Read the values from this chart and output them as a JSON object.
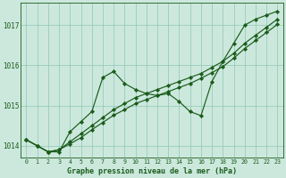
{
  "background_color": "#cce8dd",
  "grid_color": "#99ccbb",
  "line_color": "#1a5c1a",
  "marker_color": "#1a5c1a",
  "text_color": "#1a5c1a",
  "xlabel": "Graphe pression niveau de la mer (hPa)",
  "x_ticks": [
    0,
    1,
    2,
    3,
    4,
    5,
    6,
    7,
    8,
    9,
    10,
    11,
    12,
    13,
    14,
    15,
    16,
    17,
    18,
    19,
    20,
    21,
    22,
    23
  ],
  "ylim": [
    1013.7,
    1017.55
  ],
  "xlim": [
    -0.5,
    23.5
  ],
  "y_ticks": [
    1014,
    1015,
    1016,
    1017
  ],
  "series_volatile": [
    1014.15,
    1014.0,
    1013.85,
    1013.85,
    1014.35,
    1014.6,
    1014.85,
    1015.7,
    1015.85,
    1015.55,
    1015.4,
    1015.3,
    1015.25,
    1015.3,
    1015.1,
    1014.85,
    1014.75,
    1015.6,
    1016.1,
    1016.55,
    1017.0,
    1017.15,
    1017.25,
    1017.35
  ],
  "series_smooth1": [
    1014.15,
    1014.0,
    1013.85,
    1013.9,
    1014.1,
    1014.3,
    1014.5,
    1014.7,
    1014.9,
    1015.05,
    1015.2,
    1015.3,
    1015.4,
    1015.5,
    1015.6,
    1015.7,
    1015.8,
    1015.95,
    1016.1,
    1016.3,
    1016.55,
    1016.75,
    1016.95,
    1017.15
  ],
  "series_smooth2": [
    1014.15,
    1014.0,
    1013.85,
    1013.9,
    1014.05,
    1014.2,
    1014.4,
    1014.58,
    1014.76,
    1014.9,
    1015.05,
    1015.15,
    1015.25,
    1015.35,
    1015.45,
    1015.55,
    1015.68,
    1015.82,
    1015.97,
    1016.18,
    1016.42,
    1016.62,
    1016.82,
    1017.02
  ]
}
